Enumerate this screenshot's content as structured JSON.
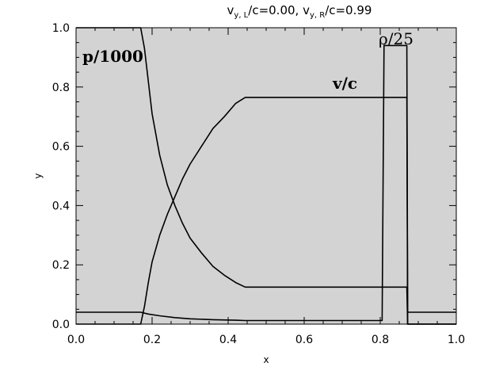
{
  "chart_data": {
    "type": "line",
    "title": "v_y,L/c=0.00,  v_y,R/c=0.99",
    "title_parts": {
      "v1": "v",
      "sub1": "y, L",
      "mid": "/c=0.00,  v",
      "sub2": "y, R",
      "end": "/c=0.99"
    },
    "xlabel": "x",
    "ylabel": "y",
    "xlim": [
      0.0,
      1.0
    ],
    "ylim": [
      0.0,
      1.0
    ],
    "x_ticks": [
      "0.0",
      "0.2",
      "0.4",
      "0.6",
      "0.8",
      "1.0"
    ],
    "y_ticks": [
      "0.0",
      "0.2",
      "0.4",
      "0.6",
      "0.8",
      "1.0"
    ],
    "grid": false,
    "background_color": "#d3d3d3",
    "line_color": "#000000",
    "series": [
      {
        "name": "p/1000",
        "x": [
          0.0,
          0.17,
          0.18,
          0.19,
          0.2,
          0.22,
          0.24,
          0.26,
          0.28,
          0.3,
          0.33,
          0.36,
          0.39,
          0.42,
          0.445,
          0.5,
          0.6,
          0.7,
          0.8,
          0.805,
          0.87,
          0.872,
          1.0
        ],
        "y": [
          1.0,
          1.0,
          0.93,
          0.82,
          0.71,
          0.57,
          0.47,
          0.4,
          0.34,
          0.29,
          0.24,
          0.195,
          0.165,
          0.14,
          0.125,
          0.125,
          0.125,
          0.125,
          0.125,
          0.125,
          0.125,
          0.0,
          0.0
        ]
      },
      {
        "name": "v/c",
        "x": [
          0.0,
          0.17,
          0.18,
          0.19,
          0.2,
          0.22,
          0.24,
          0.26,
          0.28,
          0.3,
          0.33,
          0.36,
          0.39,
          0.42,
          0.445,
          0.5,
          0.6,
          0.7,
          0.8,
          0.805,
          0.87,
          0.872,
          1.0
        ],
        "y": [
          0.0,
          0.0,
          0.06,
          0.14,
          0.21,
          0.3,
          0.37,
          0.43,
          0.49,
          0.54,
          0.6,
          0.66,
          0.7,
          0.745,
          0.765,
          0.765,
          0.765,
          0.765,
          0.765,
          0.765,
          0.765,
          0.0,
          0.0
        ]
      },
      {
        "name": "ρ/25",
        "x": [
          0.0,
          0.17,
          0.19,
          0.22,
          0.26,
          0.3,
          0.36,
          0.42,
          0.445,
          0.5,
          0.6,
          0.7,
          0.8,
          0.805,
          0.81,
          0.87,
          0.872,
          1.0
        ],
        "y": [
          0.04,
          0.04,
          0.034,
          0.028,
          0.022,
          0.018,
          0.015,
          0.013,
          0.012,
          0.012,
          0.012,
          0.012,
          0.012,
          0.012,
          0.94,
          0.94,
          0.04,
          0.04
        ]
      }
    ]
  }
}
